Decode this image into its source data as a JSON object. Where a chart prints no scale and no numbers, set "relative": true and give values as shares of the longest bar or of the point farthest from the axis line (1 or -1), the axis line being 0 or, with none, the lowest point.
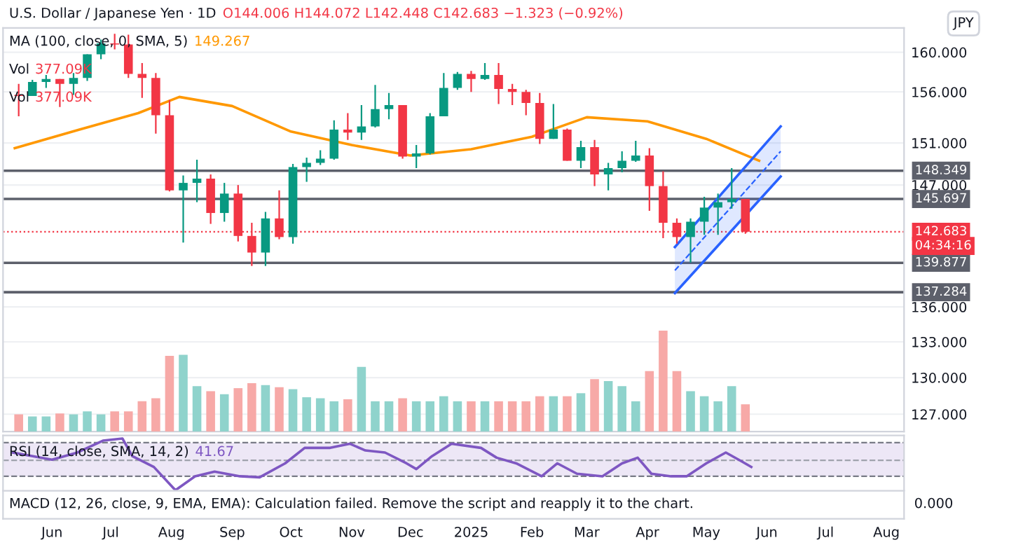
{
  "chart_data": [
    {
      "type": "candlestick",
      "title": "U.S. Dollar / Japanese Yen · 1D",
      "subtitle": "O144.006 H144.072 L142.448 C142.683 −1.323 (−0.92%)",
      "annotations": [
        "MA (100, close, 0, SMA, 5)",
        "149.267",
        "Vol",
        "377.09K",
        "Vol",
        "377.09K",
        "JPY",
        "04:34:16"
      ],
      "x": [
        "2024-05-15",
        "2024-05-22",
        "2024-05-29",
        "2024-06-05",
        "2024-06-12",
        "2024-06-19",
        "2024-06-26",
        "2024-07-03",
        "2024-07-10",
        "2024-07-17",
        "2024-07-24",
        "2024-07-31",
        "2024-08-07",
        "2024-08-14",
        "2024-08-21",
        "2024-08-28",
        "2024-09-04",
        "2024-09-11",
        "2024-09-18",
        "2024-09-25",
        "2024-10-02",
        "2024-10-09",
        "2024-10-16",
        "2024-10-23",
        "2024-10-30",
        "2024-11-06",
        "2024-11-13",
        "2024-11-20",
        "2024-11-27",
        "2024-12-04",
        "2024-12-11",
        "2024-12-18",
        "2024-12-25",
        "2025-01-01",
        "2025-01-08",
        "2025-01-15",
        "2025-01-22",
        "2025-01-29",
        "2025-02-05",
        "2025-02-12",
        "2025-02-19",
        "2025-02-26",
        "2025-03-05",
        "2025-03-12",
        "2025-03-19",
        "2025-03-26",
        "2025-04-02",
        "2025-04-09",
        "2025-04-16",
        "2025-04-23",
        "2025-04-30",
        "2025-05-07",
        "2025-05-14",
        "2025-05-21"
      ],
      "ohlc": [
        [
          155.7,
          156.8,
          153.6,
          155.6
        ],
        [
          155.6,
          157.2,
          155.6,
          157.0
        ],
        [
          157.0,
          157.7,
          156.4,
          157.3
        ],
        [
          157.3,
          157.3,
          154.5,
          156.8
        ],
        [
          156.8,
          157.9,
          155.7,
          157.4
        ],
        [
          157.4,
          159.8,
          157.1,
          159.8
        ],
        [
          159.8,
          161.3,
          159.3,
          160.9
        ],
        [
          160.9,
          161.9,
          160.3,
          160.8
        ],
        [
          160.8,
          161.8,
          157.4,
          157.8
        ],
        [
          157.8,
          158.9,
          155.4,
          157.4
        ],
        [
          157.4,
          157.9,
          151.9,
          153.7
        ],
        [
          153.7,
          155.2,
          146.4,
          146.5
        ],
        [
          146.5,
          147.9,
          141.7,
          147.2
        ],
        [
          147.2,
          149.4,
          145.4,
          147.6
        ],
        [
          147.6,
          148.0,
          143.4,
          144.4
        ],
        [
          144.4,
          147.2,
          143.6,
          146.2
        ],
        [
          146.2,
          147.0,
          141.8,
          142.3
        ],
        [
          142.3,
          143.5,
          139.6,
          140.8
        ],
        [
          140.8,
          144.5,
          139.6,
          143.9
        ],
        [
          143.9,
          146.5,
          142.0,
          142.2
        ],
        [
          142.2,
          149.0,
          141.6,
          148.7
        ],
        [
          148.7,
          149.6,
          147.3,
          149.1
        ],
        [
          149.1,
          150.3,
          148.9,
          149.5
        ],
        [
          149.5,
          153.2,
          149.4,
          152.3
        ],
        [
          152.3,
          153.9,
          151.3,
          152.0
        ],
        [
          152.0,
          154.7,
          151.3,
          152.6
        ],
        [
          152.6,
          156.7,
          152.5,
          154.3
        ],
        [
          154.3,
          155.9,
          153.3,
          154.7
        ],
        [
          154.7,
          154.7,
          149.5,
          149.7
        ],
        [
          149.7,
          150.8,
          148.6,
          150.0
        ],
        [
          150.0,
          153.9,
          149.9,
          153.6
        ],
        [
          153.6,
          157.9,
          153.6,
          156.4
        ],
        [
          156.4,
          158.0,
          156.2,
          157.8
        ],
        [
          157.8,
          158.1,
          156.0,
          157.3
        ],
        [
          157.3,
          158.9,
          157.2,
          157.7
        ],
        [
          157.7,
          158.9,
          154.8,
          156.3
        ],
        [
          156.3,
          156.8,
          154.7,
          156.0
        ],
        [
          156.0,
          156.2,
          153.7,
          154.9
        ],
        [
          154.9,
          155.9,
          150.9,
          151.4
        ],
        [
          151.4,
          154.8,
          151.4,
          152.3
        ],
        [
          152.3,
          152.4,
          149.3,
          149.3
        ],
        [
          149.3,
          151.2,
          148.6,
          150.6
        ],
        [
          150.6,
          151.3,
          146.9,
          148.0
        ],
        [
          148.0,
          149.1,
          146.5,
          148.6
        ],
        [
          148.6,
          150.2,
          148.2,
          149.3
        ],
        [
          149.3,
          151.2,
          149.2,
          149.8
        ],
        [
          149.8,
          150.5,
          144.6,
          146.9
        ],
        [
          146.9,
          148.3,
          142.1,
          143.5
        ],
        [
          143.5,
          143.9,
          141.6,
          142.2
        ],
        [
          142.2,
          143.9,
          139.9,
          143.6
        ],
        [
          143.6,
          145.9,
          142.4,
          144.9
        ],
        [
          144.9,
          146.2,
          142.4,
          145.4
        ],
        [
          145.4,
          148.6,
          144.8,
          145.7
        ],
        [
          145.7,
          145.7,
          142.5,
          142.683
        ]
      ],
      "series": [
        {
          "type": "line",
          "color": "#ff9800",
          "x": [
            "2024-05-13",
            "2024-06-15",
            "2024-07-15",
            "2024-08-05",
            "2024-09-01",
            "2024-10-01",
            "2024-11-01",
            "2024-12-01",
            "2025-01-01",
            "2025-02-01",
            "2025-03-01",
            "2025-04-01",
            "2025-05-01",
            "2025-05-28"
          ],
          "values": [
            150.5,
            152.3,
            153.9,
            155.5,
            154.6,
            152.1,
            150.8,
            149.8,
            150.4,
            151.6,
            153.5,
            153.1,
            151.4,
            149.3
          ]
        },
        {
          "type": "line",
          "color": "#2962ff",
          "line_style": "dashed",
          "x": [
            "2025-04-15",
            "2025-06-08"
          ],
          "values": [
            139.2,
            150.2
          ],
          "lower": [
            137.2,
            147.8
          ],
          "upper": [
            141.3,
            152.6
          ]
        },
        {
          "type": "line",
          "color": "#2962ff",
          "x": [
            "2025-04-15",
            "2025-06-08"
          ],
          "values": [
            137.2,
            147.8
          ]
        },
        {
          "type": "line",
          "color": "#2962ff",
          "x": [
            "2025-04-15",
            "2025-06-08"
          ],
          "values": [
            141.3,
            152.6
          ]
        }
      ],
      "ref_lines": [
        {
          "axis": "y",
          "value": 148.349,
          "label": "148.349",
          "color": "#5d606b",
          "line_style": "solid"
        },
        {
          "axis": "y",
          "value": 145.697,
          "label": "145.697",
          "color": "#5d606b",
          "line_style": "solid"
        },
        {
          "axis": "y",
          "value": 139.877,
          "label": "139.877",
          "color": "#5d606b",
          "line_style": "solid"
        },
        {
          "axis": "y",
          "value": 137.284,
          "label": "137.284",
          "color": "#5d606b",
          "line_style": "solid"
        },
        {
          "axis": "y",
          "value": 142.683,
          "label": "142.683",
          "color": "#f23645",
          "line_style": "dotted"
        }
      ],
      "log": true,
      "ylim": [
        125.6,
        162.5
      ],
      "yticks": [
        {
          "value": 127,
          "label": "127.000"
        },
        {
          "value": 130,
          "label": "130.000"
        },
        {
          "value": 133,
          "label": "133.000"
        },
        {
          "value": 136,
          "label": "136.000"
        },
        {
          "value": 147,
          "label": "147.000"
        },
        {
          "value": 151,
          "label": "151.000"
        },
        {
          "value": 156,
          "label": "156.000"
        },
        {
          "value": 160,
          "label": "160.000"
        }
      ],
      "xlim": [
        "2024-05-07",
        "2025-08-10"
      ],
      "grid": true,
      "tick_labels": "y"
    },
    {
      "type": "bar",
      "relative": true,
      "tick_labels": false,
      "x": [
        "2024-05-15",
        "2024-05-22",
        "2024-05-29",
        "2024-06-05",
        "2024-06-12",
        "2024-06-19",
        "2024-06-26",
        "2024-07-03",
        "2024-07-10",
        "2024-07-17",
        "2024-07-24",
        "2024-07-31",
        "2024-08-07",
        "2024-08-14",
        "2024-08-21",
        "2024-08-28",
        "2024-09-04",
        "2024-09-11",
        "2024-09-18",
        "2024-09-25",
        "2024-10-02",
        "2024-10-09",
        "2024-10-16",
        "2024-10-23",
        "2024-10-30",
        "2024-11-06",
        "2024-11-13",
        "2024-11-20",
        "2024-11-27",
        "2024-12-04",
        "2024-12-11",
        "2024-12-18",
        "2024-12-25",
        "2025-01-01",
        "2025-01-08",
        "2025-01-15",
        "2025-01-22",
        "2025-01-29",
        "2025-02-05",
        "2025-02-12",
        "2025-02-19",
        "2025-02-26",
        "2025-03-05",
        "2025-03-12",
        "2025-03-19",
        "2025-03-26",
        "2025-04-02",
        "2025-04-09",
        "2025-04-16",
        "2025-04-23",
        "2025-04-30",
        "2025-05-07",
        "2025-05-14",
        "2025-05-21"
      ],
      "values": [
        0.17,
        0.15,
        0.15,
        0.18,
        0.17,
        0.2,
        0.17,
        0.2,
        0.2,
        0.3,
        0.33,
        0.75,
        0.76,
        0.45,
        0.4,
        0.37,
        0.43,
        0.48,
        0.46,
        0.44,
        0.42,
        0.34,
        0.33,
        0.3,
        0.32,
        0.64,
        0.3,
        0.3,
        0.33,
        0.3,
        0.3,
        0.35,
        0.3,
        0.3,
        0.3,
        0.3,
        0.3,
        0.3,
        0.35,
        0.35,
        0.35,
        0.38,
        0.52,
        0.5,
        0.45,
        0.3,
        0.6,
        1.0,
        0.6,
        0.4,
        0.35,
        0.3,
        0.45,
        0.27
      ],
      "colors": [
        "#f7a9a7",
        "#8fd3cc",
        "#8fd3cc",
        "#f7a9a7",
        "#8fd3cc",
        "#8fd3cc",
        "#8fd3cc",
        "#f7a9a7",
        "#f7a9a7",
        "#f7a9a7",
        "#f7a9a7",
        "#f7a9a7",
        "#8fd3cc",
        "#8fd3cc",
        "#f7a9a7",
        "#8fd3cc",
        "#f7a9a7",
        "#f7a9a7",
        "#8fd3cc",
        "#f7a9a7",
        "#8fd3cc",
        "#8fd3cc",
        "#8fd3cc",
        "#8fd3cc",
        "#f7a9a7",
        "#8fd3cc",
        "#8fd3cc",
        "#8fd3cc",
        "#f7a9a7",
        "#8fd3cc",
        "#8fd3cc",
        "#8fd3cc",
        "#8fd3cc",
        "#f7a9a7",
        "#8fd3cc",
        "#f7a9a7",
        "#f7a9a7",
        "#f7a9a7",
        "#f7a9a7",
        "#8fd3cc",
        "#f7a9a7",
        "#8fd3cc",
        "#f7a9a7",
        "#8fd3cc",
        "#8fd3cc",
        "#8fd3cc",
        "#f7a9a7",
        "#f7a9a7",
        "#f7a9a7",
        "#8fd3cc",
        "#8fd3cc",
        "#8fd3cc",
        "#8fd3cc",
        "#f7a9a7"
      ],
      "xlim": [
        "2024-05-07",
        "2025-08-10"
      ]
    },
    {
      "type": "line",
      "relative": true,
      "tick_labels": "x",
      "annotations": [
        "RSI (14, close, SMA, 14, 2)",
        "41.67"
      ],
      "xticks": [
        {
          "value": "2024-06-01",
          "label": "Jun"
        },
        {
          "value": "2024-07-01",
          "label": "Jul"
        },
        {
          "value": "2024-08-01",
          "label": "Aug"
        },
        {
          "value": "2024-09-01",
          "label": "Sep"
        },
        {
          "value": "2024-10-01",
          "label": "Oct"
        },
        {
          "value": "2024-11-01",
          "label": "Nov"
        },
        {
          "value": "2024-12-01",
          "label": "Dec"
        },
        {
          "value": "2025-01-01",
          "label": "2025"
        },
        {
          "value": "2025-02-01",
          "label": "Feb"
        },
        {
          "value": "2025-03-01",
          "label": "Mar"
        },
        {
          "value": "2025-04-01",
          "label": "Apr"
        },
        {
          "value": "2025-05-01",
          "label": "May"
        },
        {
          "value": "2025-06-01",
          "label": "Jun"
        },
        {
          "value": "2025-07-01",
          "label": "Jul"
        },
        {
          "value": "2025-08-01",
          "label": "Aug"
        }
      ],
      "series": [
        {
          "color": "#7e57c2",
          "x": [
            "2024-05-12",
            "2024-06-01",
            "2024-06-14",
            "2024-06-27",
            "2024-07-07",
            "2024-07-12",
            "2024-07-23",
            "2024-08-03",
            "2024-08-13",
            "2024-08-23",
            "2024-09-05",
            "2024-09-15",
            "2024-09-28",
            "2024-10-08",
            "2024-10-21",
            "2024-10-31",
            "2024-11-08",
            "2024-11-18",
            "2024-11-29",
            "2024-12-04",
            "2024-12-12",
            "2024-12-22",
            "2025-01-06",
            "2025-01-14",
            "2025-01-24",
            "2025-02-06",
            "2025-02-14",
            "2025-02-24",
            "2025-03-09",
            "2025-03-19",
            "2025-03-27",
            "2025-04-03",
            "2025-04-13",
            "2025-04-21",
            "2025-05-01",
            "2025-05-11",
            "2025-05-19",
            "2025-05-24"
          ],
          "values": [
            0.73,
            0.59,
            0.73,
            0.96,
            1,
            0.66,
            0.45,
            0,
            0.27,
            0.36,
            0.27,
            0.25,
            0.52,
            0.82,
            0.82,
            0.9,
            0.77,
            0.73,
            0.52,
            0.41,
            0.66,
            0.9,
            0.82,
            0.63,
            0.52,
            0.27,
            0.52,
            0.32,
            0.27,
            0.52,
            0.63,
            0.32,
            0.27,
            0.27,
            0.52,
            0.73,
            0.56,
            0.45
          ]
        }
      ],
      "ref_lines": [
        {
          "axis": "y",
          "value": 0.92,
          "color": "#787b86",
          "line_style": "dashed"
        },
        {
          "axis": "y",
          "value": 0.58,
          "color": "#a0a3ad",
          "line_style": "dashed"
        },
        {
          "axis": "y",
          "value": 0.27,
          "color": "#787b86",
          "line_style": "dashed"
        }
      ],
      "bands": [
        {
          "axis": "y",
          "from": 0.27,
          "to": 0.92,
          "color": "#ede7f6"
        }
      ],
      "xlim": [
        "2024-05-07",
        "2025-08-10"
      ]
    },
    {
      "type": "other",
      "annotations": [
        "MACD (12, 26, close, 9, EMA, EMA): Calculation failed. Remove the script and reapply it to the chart.",
        "0.000"
      ]
    }
  ]
}
